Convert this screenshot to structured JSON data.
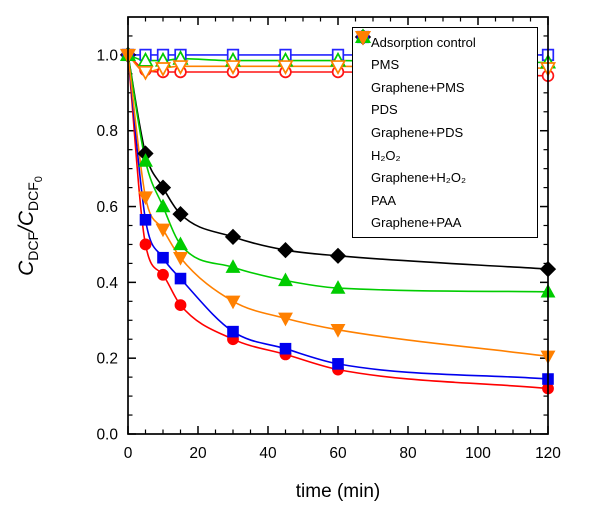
{
  "chart_data": {
    "type": "scatter-line",
    "title": "",
    "xlabel": "time (min)",
    "ylabel": "C_DCF/C_DCF_0",
    "ylabel_parts": {
      "c1": "C",
      "s1": "DCF",
      "c2": "/C",
      "s2": "DCF",
      "s0": "0"
    },
    "xlim": [
      0,
      120
    ],
    "ylim": [
      0,
      1.1
    ],
    "x_major_ticks": [
      0,
      20,
      40,
      60,
      80,
      100,
      120
    ],
    "x_minor_step": 5,
    "y_major_ticks": [
      0.0,
      0.2,
      0.4,
      0.6,
      0.8,
      1.0
    ],
    "y_minor_step": 0.05,
    "grid": false,
    "legend_position": "top-right",
    "axis_color": "#000000",
    "x": [
      0,
      5,
      10,
      15,
      30,
      45,
      60,
      120
    ],
    "series": [
      {
        "slug": "adsorption-control",
        "label": "Adsorption control",
        "color": "#000000",
        "marker": "diamond",
        "fill": "filled",
        "values": [
          1.0,
          0.74,
          0.65,
          0.58,
          0.52,
          0.485,
          0.47,
          0.435
        ]
      },
      {
        "slug": "pms",
        "label": "PMS",
        "color": "#ff1414",
        "marker": "circle",
        "fill": "open",
        "values": [
          1.0,
          0.96,
          0.955,
          0.955,
          0.955,
          0.955,
          0.955,
          0.945
        ]
      },
      {
        "slug": "graphene-pms",
        "label": "Graphene+PMS",
        "color": "#ff0000",
        "marker": "circle",
        "fill": "filled",
        "values": [
          1.0,
          0.5,
          0.42,
          0.34,
          0.25,
          0.21,
          0.17,
          0.12
        ]
      },
      {
        "slug": "pds",
        "label": "PDS",
        "color": "#2424ff",
        "marker": "square",
        "fill": "open",
        "values": [
          1.0,
          1.0,
          1.0,
          1.0,
          1.0,
          1.0,
          1.0,
          1.0
        ]
      },
      {
        "slug": "graphene-pds",
        "label": "Graphene+PDS",
        "color": "#0000ee",
        "marker": "square",
        "fill": "filled",
        "values": [
          1.0,
          0.565,
          0.465,
          0.41,
          0.27,
          0.225,
          0.185,
          0.145
        ]
      },
      {
        "slug": "h2o2",
        "label": "H₂O₂",
        "color": "#00cc00",
        "marker": "triangle-up",
        "fill": "open",
        "values": [
          1.0,
          0.985,
          0.985,
          0.99,
          0.985,
          0.985,
          0.985,
          0.98
        ]
      },
      {
        "slug": "graphene-h2o2",
        "label": "Graphene+H₂O₂",
        "color": "#00cc00",
        "marker": "triangle-up",
        "fill": "filled",
        "values": [
          1.0,
          0.72,
          0.6,
          0.5,
          0.44,
          0.405,
          0.385,
          0.375
        ]
      },
      {
        "slug": "paa",
        "label": "PAA",
        "color": "#ff8000",
        "marker": "triangle-down",
        "fill": "open",
        "values": [
          1.0,
          0.955,
          0.965,
          0.97,
          0.97,
          0.97,
          0.97,
          0.965
        ]
      },
      {
        "slug": "graphene-paa",
        "label": "Graphene+PAA",
        "color": "#ff8000",
        "marker": "triangle-down",
        "fill": "filled",
        "values": [
          1.0,
          0.625,
          0.54,
          0.465,
          0.35,
          0.305,
          0.275,
          0.205
        ]
      }
    ]
  }
}
